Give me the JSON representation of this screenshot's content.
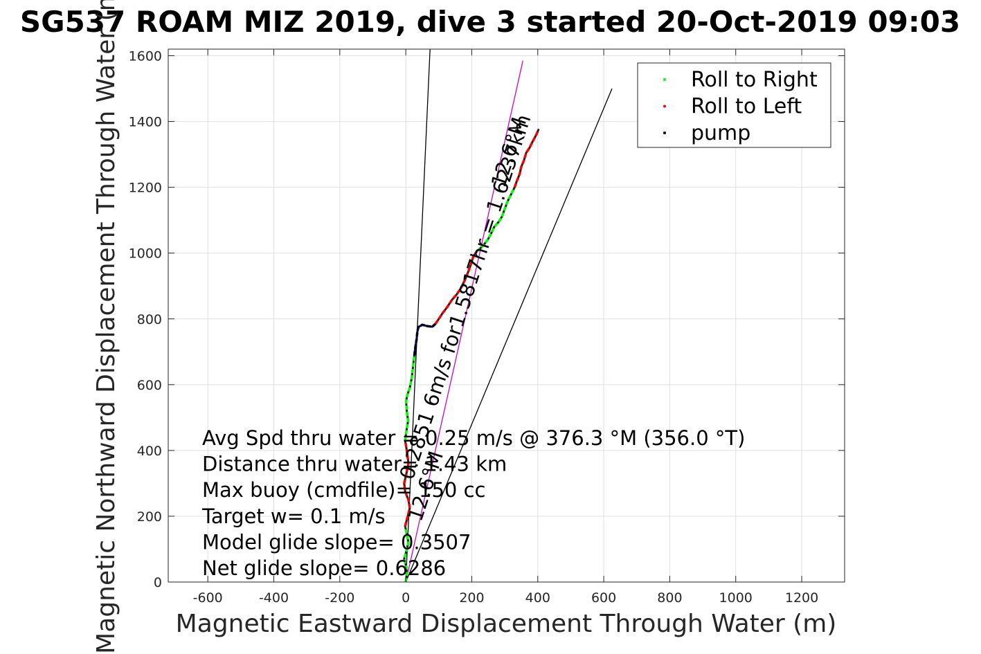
{
  "chart_data": {
    "type": "line",
    "title": "SG537 ROAM MIZ 2019, dive 3 started 20-Oct-2019 09:03",
    "xlabel": "Magnetic Eastward Displacement Through Water (m)",
    "ylabel": "Magnetic Northward Displacement Through Water (m)",
    "xlim": [
      -720,
      1330
    ],
    "ylim": [
      0,
      1620
    ],
    "xticks": [
      -600,
      -400,
      -200,
      0,
      200,
      400,
      600,
      800,
      1000,
      1200
    ],
    "yticks": [
      0,
      200,
      400,
      600,
      800,
      1000,
      1200,
      1400,
      1600
    ],
    "grid": true,
    "legend_position": "top-right",
    "legend": [
      {
        "label": "Roll to Right",
        "color": "#00ff00"
      },
      {
        "label": "Roll to Left",
        "color": "#ff0000"
      },
      {
        "label": "pump",
        "color": "#000000"
      }
    ],
    "track": [
      [
        0,
        0
      ],
      [
        3,
        25
      ],
      [
        2,
        45
      ],
      [
        -5,
        70
      ],
      [
        2,
        95
      ],
      [
        8,
        120
      ],
      [
        3,
        145
      ],
      [
        -2,
        170
      ],
      [
        6,
        200
      ],
      [
        12,
        225
      ],
      [
        8,
        250
      ],
      [
        -2,
        275
      ],
      [
        -5,
        300
      ],
      [
        2,
        330
      ],
      [
        8,
        360
      ],
      [
        4,
        395
      ],
      [
        -2,
        430
      ],
      [
        2,
        460
      ],
      [
        7,
        490
      ],
      [
        3,
        520
      ],
      [
        1,
        550
      ],
      [
        5,
        570
      ],
      [
        12,
        590
      ],
      [
        18,
        620
      ],
      [
        22,
        655
      ],
      [
        26,
        690
      ],
      [
        30,
        720
      ],
      [
        33,
        740
      ],
      [
        35,
        760
      ],
      [
        38,
        775
      ],
      [
        50,
        782
      ],
      [
        65,
        778
      ],
      [
        80,
        776
      ],
      [
        90,
        785
      ],
      [
        100,
        800
      ],
      [
        112,
        818
      ],
      [
        125,
        835
      ],
      [
        140,
        858
      ],
      [
        155,
        875
      ],
      [
        168,
        895
      ],
      [
        180,
        920
      ],
      [
        190,
        945
      ],
      [
        198,
        968
      ],
      [
        205,
        990
      ],
      [
        215,
        1005
      ],
      [
        232,
        1020
      ],
      [
        248,
        1040
      ],
      [
        258,
        1058
      ],
      [
        268,
        1080
      ],
      [
        282,
        1095
      ],
      [
        292,
        1112
      ],
      [
        300,
        1135
      ],
      [
        310,
        1160
      ],
      [
        320,
        1180
      ],
      [
        330,
        1200
      ],
      [
        336,
        1218
      ],
      [
        345,
        1240
      ],
      [
        350,
        1262
      ],
      [
        358,
        1282
      ],
      [
        365,
        1305
      ],
      [
        375,
        1320
      ],
      [
        385,
        1340
      ],
      [
        393,
        1355
      ],
      [
        398,
        1365
      ],
      [
        402,
        1375
      ]
    ],
    "track_segments": [
      {
        "series": "Roll to Right",
        "from": 0,
        "to": 7
      },
      {
        "series": "Roll to Left",
        "from": 7,
        "to": 16
      },
      {
        "series": "Roll to Right",
        "from": 16,
        "to": 25
      },
      {
        "series": "pump",
        "from": 25,
        "to": 33
      },
      {
        "series": "Roll to Left",
        "from": 33,
        "to": 44
      },
      {
        "series": "Roll to Right",
        "from": 44,
        "to": 54
      },
      {
        "series": "Roll to Left",
        "from": 54,
        "to": 64
      }
    ],
    "reference_lines": [
      {
        "from": [
          0,
          0
        ],
        "to": [
          74,
          1630
        ],
        "color": "#000000"
      },
      {
        "from": [
          0,
          0
        ],
        "to": [
          355,
          1585
        ],
        "color": "#cc00cc"
      },
      {
        "from": [
          0,
          0
        ],
        "to": [
          625,
          1500
        ],
        "color": "#000000"
      }
    ],
    "rotated_annotations": [
      {
        "text": "0.2851 6m/s for1.5817hr = 1.6237km",
        "x": 200,
        "y": 860,
        "angle": -72
      },
      {
        "text": "12.6°M",
        "x": 332,
        "y": 1300,
        "angle": -72
      },
      {
        "text": "12.6°M",
        "x": 80,
        "y": 285,
        "angle": -72
      }
    ],
    "stats_text": [
      "Avg Spd thru water =  0.25 m/s @ 376.3 °M (356.0 °T)",
      "Distance thru water= 1.43 km",
      "Max buoy (cmdfile)= 150 cc",
      "Target w= 0.1 m/s",
      "Model glide slope= 0.3507",
      "Net glide slope= 0.6286"
    ]
  }
}
